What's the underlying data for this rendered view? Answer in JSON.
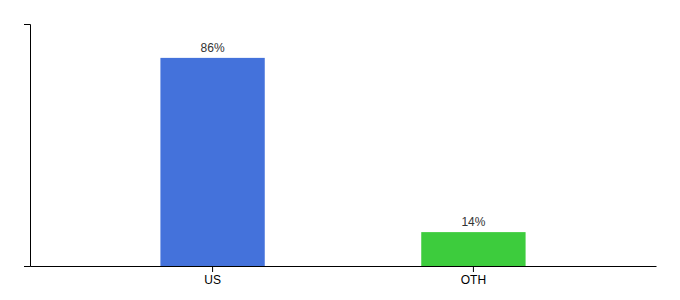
{
  "chart_data": {
    "type": "bar",
    "categories": [
      "US",
      "OTH"
    ],
    "values": [
      86,
      14
    ],
    "value_labels": [
      "86%",
      "14%"
    ],
    "colors": [
      "#4472db",
      "#3dcc3d"
    ],
    "ylim": [
      0,
      100
    ],
    "data_labels": true,
    "tick_labels": "x"
  }
}
